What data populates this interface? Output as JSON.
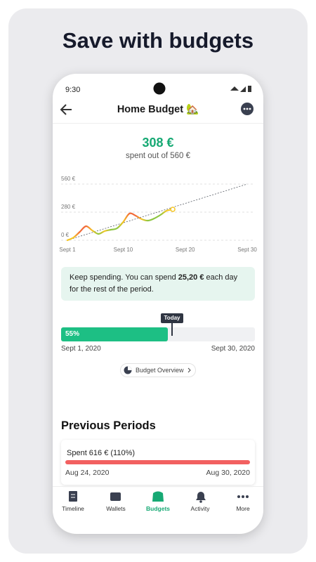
{
  "headline": "Save with budgets",
  "status_bar": {
    "time": "9:30"
  },
  "header": {
    "title": "Home Budget 🏡"
  },
  "summary": {
    "amount": "308 €",
    "subtitle": "spent out of 560 €"
  },
  "chart_data": {
    "type": "line",
    "x": [
      1,
      2,
      3,
      4,
      5,
      6,
      7,
      8,
      9,
      10,
      11,
      12,
      13,
      14,
      15,
      16,
      17,
      18
    ],
    "values": [
      0,
      28,
      84,
      140,
      98,
      63,
      91,
      105,
      119,
      182,
      266,
      245,
      210,
      196,
      217,
      252,
      294,
      308
    ],
    "pace_line": {
      "x": [
        1,
        30
      ],
      "values": [
        0,
        560
      ],
      "color": "#555a63"
    },
    "colors": {
      "over": "#f26b3a",
      "near": "#f5c623",
      "under": "#8dc641"
    },
    "xlim": [
      1,
      30
    ],
    "xticks": [
      {
        "value": 1,
        "label": "Sept 1"
      },
      {
        "value": 10,
        "label": "Sept 10"
      },
      {
        "value": 20,
        "label": "Sept 20"
      },
      {
        "value": 30,
        "label": "Sept 30"
      }
    ],
    "ylim": [
      0,
      560
    ],
    "yticks": [
      {
        "value": 0,
        "label": "0 €"
      },
      {
        "value": 280,
        "label": "280 €"
      },
      {
        "value": 560,
        "label": "560 €"
      }
    ],
    "grid": true
  },
  "info": {
    "parts": [
      "Keep spending. You can spend ",
      "25,20 €",
      " each day for the rest of the period."
    ]
  },
  "progress": {
    "percent": 55,
    "percent_label": "55%",
    "marker": "Today",
    "start": "Sept 1, 2020",
    "end": "Sept 30, 2020",
    "color": "#1dbf84"
  },
  "button": "Budget Overview",
  "previous": {
    "title": "Previous Periods",
    "periods": [
      {
        "label": "Spent 616 € (110%)",
        "start": "Aug 24, 2020",
        "end": "Aug 30, 2020"
      }
    ]
  },
  "nav": {
    "items": [
      "Timeline",
      "Wallets",
      "Budgets",
      "Activity",
      "More"
    ],
    "active": 2
  }
}
